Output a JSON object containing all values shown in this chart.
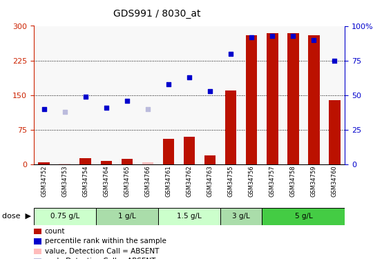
{
  "title": "GDS991 / 8030_at",
  "samples": [
    "GSM34752",
    "GSM34753",
    "GSM34754",
    "GSM34764",
    "GSM34765",
    "GSM34766",
    "GSM34761",
    "GSM34762",
    "GSM34763",
    "GSM34755",
    "GSM34756",
    "GSM34757",
    "GSM34758",
    "GSM34759",
    "GSM34760"
  ],
  "count_values": [
    5,
    2,
    13,
    8,
    12,
    5,
    55,
    60,
    20,
    160,
    280,
    285,
    285,
    280,
    140
  ],
  "count_absent": [
    false,
    true,
    false,
    false,
    false,
    true,
    false,
    false,
    false,
    false,
    false,
    false,
    false,
    false,
    false
  ],
  "rank_values": [
    40,
    38,
    49,
    41,
    46,
    40,
    58,
    63,
    53,
    80,
    92,
    93,
    93,
    90,
    75
  ],
  "rank_absent": [
    false,
    true,
    false,
    false,
    false,
    true,
    false,
    false,
    false,
    false,
    false,
    false,
    false,
    false,
    false
  ],
  "dose_groups": [
    {
      "label": "0.75 g/L",
      "start": 0,
      "end": 3,
      "color": "#ccffcc"
    },
    {
      "label": "1 g/L",
      "start": 3,
      "end": 6,
      "color": "#aaddaa"
    },
    {
      "label": "1.5 g/L",
      "start": 6,
      "end": 9,
      "color": "#ccffcc"
    },
    {
      "label": "3 g/L",
      "start": 9,
      "end": 11,
      "color": "#aaddaa"
    },
    {
      "label": "5 g/L",
      "start": 11,
      "end": 15,
      "color": "#44cc44"
    }
  ],
  "ylim_left": [
    0,
    300
  ],
  "ylim_right": [
    0,
    100
  ],
  "yticks_left": [
    0,
    75,
    150,
    225,
    300
  ],
  "yticks_right": [
    0,
    25,
    50,
    75,
    100
  ],
  "color_bar_present": "#bb1100",
  "color_bar_absent": "#ffbbbb",
  "color_rank_present": "#0000cc",
  "color_rank_absent": "#bbbbdd",
  "left_axis_color": "#cc2200",
  "right_axis_color": "#0000cc"
}
